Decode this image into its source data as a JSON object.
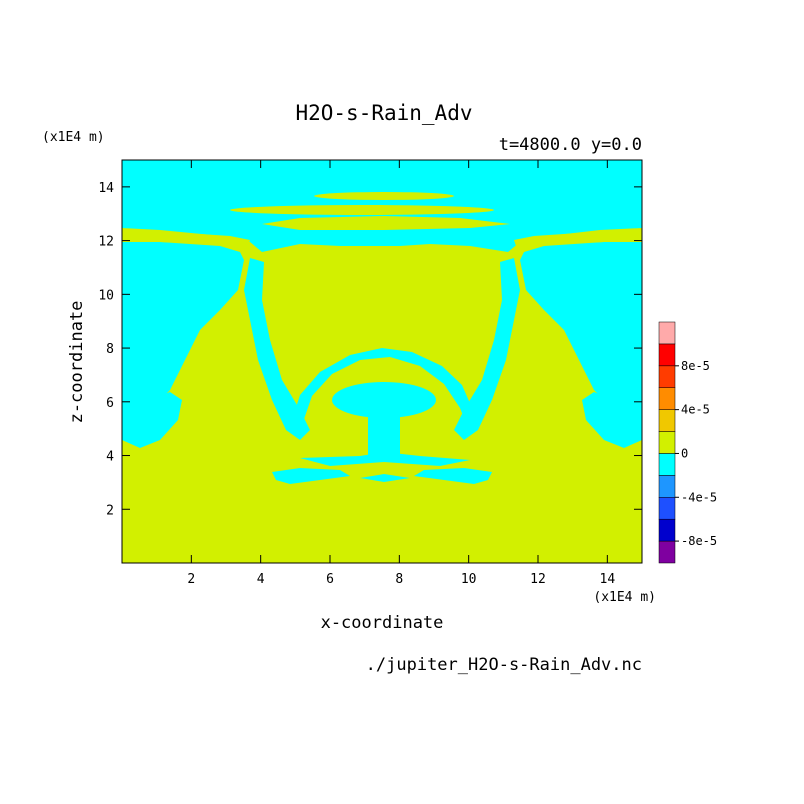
{
  "chart_data": {
    "type": "heatmap",
    "title": "H2O-s-Rain_Adv",
    "subtitle": "t=4800.0 y=0.0",
    "xlabel": "x-coordinate",
    "ylabel": "z-coordinate",
    "x_unit": "(x1E4 m)",
    "y_unit": "(x1E4 m)",
    "xlim": [
      0,
      15
    ],
    "ylim": [
      0,
      15
    ],
    "x_ticks": [
      2,
      4,
      6,
      8,
      10,
      12,
      14
    ],
    "y_ticks": [
      2,
      4,
      6,
      8,
      10,
      12,
      14
    ],
    "footer": "./jupiter_H2O-s-Rain_Adv.nc",
    "colorbar": {
      "levels": [
        -0.0001,
        -8e-05,
        -6e-05,
        -4e-05,
        -2e-05,
        0,
        2e-05,
        4e-05,
        6e-05,
        8e-05,
        0.0001
      ],
      "colors": [
        "#7f00a0",
        "#0000cd",
        "#1e50ff",
        "#1e96ff",
        "#00ffff",
        "#d2f000",
        "#f0c800",
        "#ff8c00",
        "#ff3c00",
        "#ff0000",
        "#ffaaaa"
      ],
      "tick_values": [
        8e-05,
        4e-05,
        0,
        -4e-05,
        -8e-05
      ],
      "tick_labels": [
        "8e-5",
        "4e-5",
        "0",
        "-4e-5",
        "-8e-5"
      ]
    },
    "regions": {
      "background_class": "0 to 2e-5",
      "negative_class": "-2e-5 to 0"
    }
  }
}
